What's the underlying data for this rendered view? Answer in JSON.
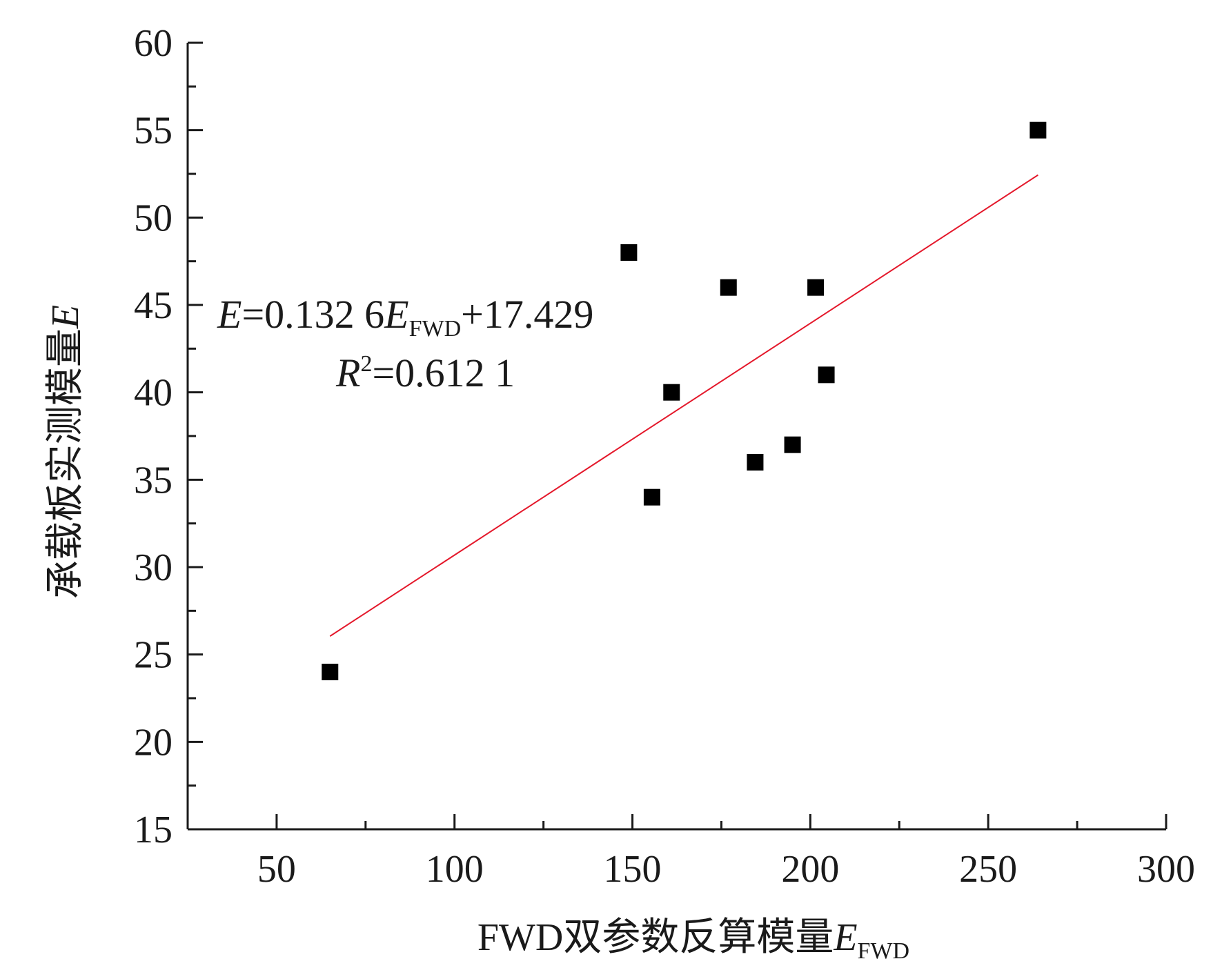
{
  "chart_data": {
    "type": "scatter",
    "xlabel": "FWD双参数反算模量",
    "xlabel_var": "E",
    "xlabel_sub": "FWD",
    "ylabel": "承载板实测模量",
    "ylabel_var": "E",
    "xlim": [
      25,
      300
    ],
    "ylim": [
      15,
      60
    ],
    "x_ticks": [
      "50",
      "100",
      "150",
      "200",
      "250",
      "300"
    ],
    "y_ticks": [
      "15",
      "20",
      "25",
      "30",
      "35",
      "40",
      "45",
      "50",
      "55",
      "60"
    ],
    "x_tick_values": [
      50,
      100,
      150,
      200,
      250,
      300
    ],
    "y_tick_values": [
      15,
      20,
      25,
      30,
      35,
      40,
      45,
      50,
      55,
      60
    ],
    "x_minor_values": [
      75,
      125,
      175,
      225,
      275
    ],
    "y_minor_values": [
      17.5,
      22.5,
      27.5,
      32.5,
      37.5,
      42.5,
      47.5,
      52.5,
      57.5
    ],
    "points": [
      {
        "x": 65,
        "y": 24
      },
      {
        "x": 149,
        "y": 48
      },
      {
        "x": 155.5,
        "y": 34
      },
      {
        "x": 161,
        "y": 40
      },
      {
        "x": 177,
        "y": 46
      },
      {
        "x": 184.5,
        "y": 36
      },
      {
        "x": 195,
        "y": 37
      },
      {
        "x": 201.5,
        "y": 46
      },
      {
        "x": 204.5,
        "y": 41
      },
      {
        "x": 264,
        "y": 55
      }
    ],
    "fit": {
      "slope": 0.1326,
      "intercept": 17.429,
      "r2": 0.6121,
      "x_range": [
        65,
        264
      ]
    },
    "marker_color": "#000000",
    "fit_color": "#e4182b",
    "grid": false,
    "equation": {
      "lhs": "E",
      "equals_a": "=0.132 6",
      "mid_var": "E",
      "mid_sub": "FWD",
      "rest": "+17.429",
      "r_var": "R",
      "r_sup": "2",
      "r_rest": "=0.612 1"
    }
  }
}
